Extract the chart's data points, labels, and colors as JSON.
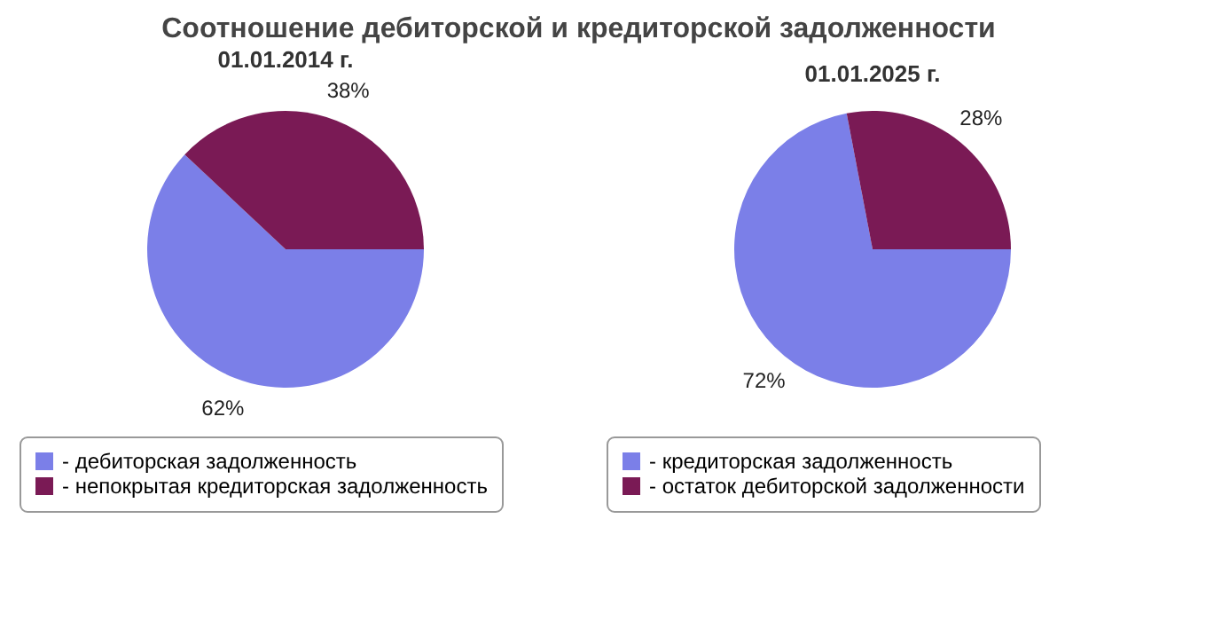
{
  "chart_data": [
    {
      "type": "pie",
      "title": "Соотношение дебиторской и кредиторской задолженности",
      "subtitle": "01.01.2014 г.",
      "categories": [
        "- дебиторская задолженность",
        "- непокрытая кредиторская задолженность"
      ],
      "values": [
        62,
        38
      ],
      "colors": [
        "#7b7fe8",
        "#7a1a55"
      ],
      "value_labels": [
        "62%",
        "38%"
      ],
      "legend": "bottom"
    },
    {
      "type": "pie",
      "subtitle": "01.01.2025 г.",
      "categories": [
        "- кредиторская задолженность",
        "- остаток дебиторской задолженности"
      ],
      "values": [
        72,
        28
      ],
      "colors": [
        "#7b7fe8",
        "#7a1a55"
      ],
      "value_labels": [
        "72%",
        "28%"
      ],
      "legend": "bottom"
    }
  ]
}
